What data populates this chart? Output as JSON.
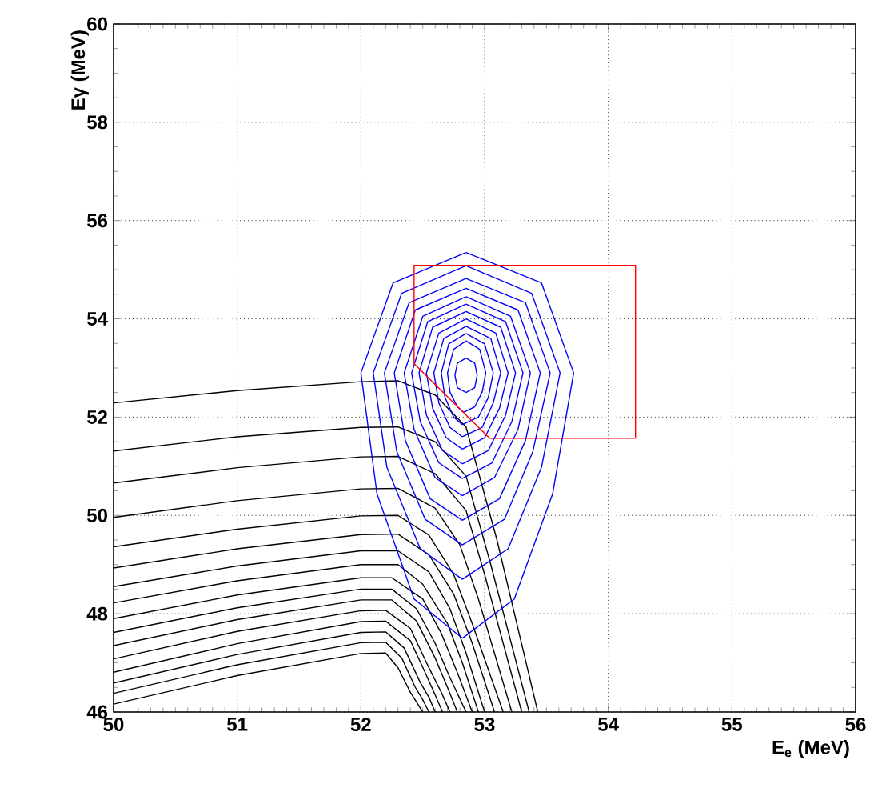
{
  "chart_data": {
    "type": "line",
    "xlabel": "E$_{e}$ (MeV)",
    "ylabel": "Eγ (MeV)",
    "xlim": [
      50,
      56
    ],
    "ylim": [
      46,
      60
    ],
    "xticks": [
      50,
      51,
      52,
      53,
      54,
      55,
      56
    ],
    "yticks": [
      46,
      48,
      50,
      52,
      54,
      56,
      58,
      60
    ],
    "grid": true,
    "series": [
      {
        "color": "#000000",
        "x": [
          50,
          51,
          52,
          52.3,
          52.6,
          52.85,
          53.1,
          53.43
        ],
        "values": [
          52.29,
          52.54,
          52.72,
          52.74,
          52.45,
          51.8,
          49.5,
          46
        ]
      },
      {
        "color": "#000000",
        "x": [
          50,
          51,
          52,
          52.3,
          52.6,
          52.85,
          53.05,
          53.36
        ],
        "values": [
          51.31,
          51.6,
          51.79,
          51.8,
          51.5,
          50.8,
          49,
          46
        ]
      },
      {
        "color": "#000000",
        "x": [
          50,
          51,
          52,
          52.3,
          52.6,
          52.85,
          53.0,
          53.3
        ],
        "values": [
          50.66,
          50.97,
          51.19,
          51.2,
          50.85,
          50.1,
          48.8,
          46
        ]
      },
      {
        "color": "#000000",
        "x": [
          50,
          51,
          52,
          52.3,
          52.6,
          52.8,
          52.95,
          53.22
        ],
        "values": [
          49.96,
          50.3,
          50.54,
          50.55,
          50.15,
          49.4,
          48.3,
          46
        ]
      },
      {
        "color": "#000000",
        "x": [
          50,
          51,
          52,
          52.3,
          52.55,
          52.75,
          52.9,
          53.15
        ],
        "values": [
          49.36,
          49.72,
          49.99,
          50.0,
          49.6,
          48.8,
          47.8,
          46
        ]
      },
      {
        "color": "#000000",
        "x": [
          50,
          51,
          52,
          52.3,
          52.55,
          52.75,
          52.9,
          53.08
        ],
        "values": [
          48.93,
          49.32,
          49.61,
          49.62,
          49.2,
          48.4,
          47.4,
          46
        ]
      },
      {
        "color": "#000000",
        "x": [
          50,
          51,
          52,
          52.3,
          52.55,
          52.72,
          52.85,
          53.0
        ],
        "values": [
          48.55,
          48.97,
          49.28,
          49.28,
          48.85,
          48.1,
          47.2,
          46
        ]
      },
      {
        "color": "#000000",
        "x": [
          50,
          51,
          52,
          52.3,
          52.5,
          52.7,
          52.82,
          52.95
        ],
        "values": [
          48.22,
          48.67,
          49.0,
          49.0,
          48.6,
          47.8,
          47.0,
          46
        ]
      },
      {
        "color": "#000000",
        "x": [
          50,
          51,
          52,
          52.25,
          52.5,
          52.65,
          52.78,
          52.9
        ],
        "values": [
          47.9,
          48.38,
          48.73,
          48.73,
          48.3,
          47.6,
          46.8,
          46
        ]
      },
      {
        "color": "#000000",
        "x": [
          50,
          51,
          52,
          52.25,
          52.45,
          52.6,
          52.72,
          52.85
        ],
        "values": [
          47.62,
          48.12,
          48.5,
          48.5,
          48.1,
          47.4,
          46.7,
          46
        ]
      },
      {
        "color": "#000000",
        "x": [
          50,
          51,
          52,
          52.25,
          52.45,
          52.6,
          52.7,
          52.78
        ],
        "values": [
          47.35,
          47.88,
          48.28,
          48.28,
          47.85,
          47.1,
          46.5,
          46
        ]
      },
      {
        "color": "#000000",
        "x": [
          50,
          51,
          52,
          52.2,
          52.4,
          52.55,
          52.65,
          52.72
        ],
        "values": [
          47.08,
          47.64,
          48.06,
          48.07,
          47.7,
          46.9,
          46.4,
          46
        ]
      },
      {
        "color": "#000000",
        "x": [
          50,
          51,
          52,
          52.2,
          52.4,
          52.52,
          52.6,
          52.66
        ],
        "values": [
          46.81,
          47.39,
          47.84,
          47.85,
          47.45,
          46.8,
          46.35,
          46
        ]
      },
      {
        "color": "#000000",
        "x": [
          50,
          51,
          52,
          52.2,
          52.35,
          52.48,
          52.55,
          52.6
        ],
        "values": [
          46.59,
          47.17,
          47.62,
          47.63,
          47.3,
          46.6,
          46.3,
          46
        ]
      },
      {
        "color": "#000000",
        "x": [
          50,
          51,
          52,
          52.2,
          52.33,
          52.44,
          52.5,
          52.55
        ],
        "values": [
          46.38,
          46.96,
          47.41,
          47.42,
          47.1,
          46.5,
          46.25,
          46
        ]
      },
      {
        "color": "#000000",
        "x": [
          50,
          51,
          52,
          52.2,
          52.3,
          52.4,
          52.45,
          52.5
        ],
        "values": [
          46.16,
          46.74,
          47.19,
          47.2,
          46.9,
          46.4,
          46.2,
          46
        ]
      },
      {
        "color": "#0000ff",
        "x": [
          52.85,
          53.46,
          53.72,
          53.55,
          53.24,
          52.82
        ],
        "values": [
          55.35,
          54.73,
          52.9,
          50.44,
          48.3,
          47.5
        ]
      },
      {
        "color": "#0000ff",
        "x": [
          52.82,
          52.43,
          52.13,
          52.0,
          52.26,
          52.85
        ],
        "values": [
          47.5,
          48.3,
          50.44,
          52.9,
          54.73,
          55.35
        ]
      },
      {
        "color": "#0000ff",
        "x": [
          52.85,
          53.38,
          53.61,
          53.46,
          53.19,
          52.82
        ],
        "values": [
          55.08,
          54.52,
          52.9,
          50.98,
          49.32,
          48.7
        ]
      },
      {
        "color": "#0000ff",
        "x": [
          52.82,
          52.48,
          52.21,
          52.1,
          52.33,
          52.85
        ],
        "values": [
          48.7,
          49.32,
          50.98,
          52.9,
          54.52,
          55.08
        ]
      },
      {
        "color": "#0000ff",
        "x": [
          52.85,
          53.33,
          53.53,
          53.39,
          53.16,
          52.82
        ],
        "values": [
          54.82,
          54.33,
          52.9,
          51.3,
          49.92,
          49.4
        ]
      },
      {
        "color": "#0000ff",
        "x": [
          52.82,
          52.52,
          52.29,
          52.19,
          52.39,
          52.85
        ],
        "values": [
          49.4,
          49.92,
          51.3,
          52.9,
          54.33,
          54.82
        ]
      },
      {
        "color": "#0000ff",
        "x": [
          52.85,
          53.27,
          53.45,
          53.33,
          53.12,
          52.82
        ],
        "values": [
          54.62,
          54.18,
          52.9,
          51.52,
          50.34,
          49.9
        ]
      },
      {
        "color": "#0000ff",
        "x": [
          52.82,
          52.56,
          52.36,
          52.27,
          52.44,
          52.85
        ],
        "values": [
          49.9,
          50.34,
          51.52,
          52.9,
          54.18,
          54.62
        ]
      },
      {
        "color": "#0000ff",
        "x": [
          52.85,
          53.21,
          53.37,
          53.27,
          53.08,
          52.82
        ],
        "values": [
          54.45,
          54.05,
          52.9,
          51.75,
          50.77,
          50.4
        ]
      },
      {
        "color": "#0000ff",
        "x": [
          52.82,
          52.6,
          52.43,
          52.35,
          52.5,
          52.85
        ],
        "values": [
          50.4,
          50.77,
          51.75,
          52.9,
          54.05,
          54.45
        ]
      },
      {
        "color": "#0000ff",
        "x": [
          52.85,
          53.17,
          53.31,
          53.22,
          53.06,
          52.82
        ],
        "values": [
          54.3,
          53.94,
          52.9,
          51.91,
          51.07,
          50.75
        ]
      },
      {
        "color": "#0000ff",
        "x": [
          52.82,
          52.63,
          52.48,
          52.41,
          52.54,
          52.85
        ],
        "values": [
          50.75,
          51.07,
          51.91,
          52.9,
          53.94,
          54.3
        ]
      },
      {
        "color": "#0000ff",
        "x": [
          52.85,
          53.13,
          53.25,
          53.17,
          53.03,
          52.82
        ],
        "values": [
          54.15,
          53.83,
          52.9,
          52.04,
          51.32,
          51.05
        ]
      },
      {
        "color": "#0000ff",
        "x": [
          52.82,
          52.66,
          52.53,
          52.47,
          52.58,
          52.85
        ],
        "values": [
          51.05,
          51.32,
          52.04,
          52.9,
          53.83,
          54.15
        ]
      },
      {
        "color": "#0000ff",
        "x": [
          52.85,
          53.09,
          53.19,
          53.12,
          53.0,
          52.82
        ],
        "values": [
          54.0,
          53.71,
          52.9,
          52.18,
          51.58,
          51.35
        ]
      },
      {
        "color": "#0000ff",
        "x": [
          52.82,
          52.69,
          52.58,
          52.53,
          52.63,
          52.85
        ],
        "values": [
          51.35,
          51.58,
          52.18,
          52.9,
          53.71,
          54.0
        ]
      },
      {
        "color": "#0000ff",
        "x": [
          52.85,
          53.05,
          53.13,
          53.07,
          52.98,
          52.82
        ],
        "values": [
          53.85,
          53.6,
          52.9,
          52.29,
          51.79,
          51.6
        ]
      },
      {
        "color": "#0000ff",
        "x": [
          52.82,
          52.72,
          52.63,
          52.59,
          52.67,
          52.85
        ],
        "values": [
          51.6,
          51.79,
          52.29,
          52.9,
          53.6,
          53.85
        ]
      },
      {
        "color": "#0000ff",
        "x": [
          52.85,
          53.0,
          53.07,
          53.03,
          52.95,
          52.82
        ],
        "values": [
          53.7,
          53.49,
          52.9,
          52.4,
          52.0,
          51.85
        ]
      },
      {
        "color": "#0000ff",
        "x": [
          52.82,
          52.75,
          52.68,
          52.65,
          52.71,
          52.85
        ],
        "values": [
          51.85,
          52.0,
          52.4,
          52.9,
          53.49,
          53.7
        ]
      },
      {
        "color": "#0000ff",
        "x": [
          52.85,
          52.96,
          53.01,
          52.98,
          52.92,
          52.83
        ],
        "values": [
          53.55,
          53.38,
          52.9,
          52.51,
          52.21,
          52.1
        ]
      },
      {
        "color": "#0000ff",
        "x": [
          52.83,
          52.78,
          52.72,
          52.7,
          52.75,
          52.85
        ],
        "values": [
          52.1,
          52.21,
          52.51,
          52.9,
          53.38,
          53.55
        ]
      },
      {
        "color": "#0000ff",
        "x": [
          52.85,
          52.92,
          52.94,
          52.92,
          52.85
        ],
        "values": [
          53.2,
          53.1,
          52.85,
          52.6,
          52.5
        ]
      },
      {
        "color": "#0000ff",
        "x": [
          52.85,
          52.78,
          52.76,
          52.78,
          52.85
        ],
        "values": [
          52.5,
          52.6,
          52.85,
          53.1,
          53.2
        ]
      },
      {
        "color": "#ff0000",
        "x": [
          52.43,
          52.43,
          54.22,
          54.22
        ],
        "values": [
          53.09,
          55.09,
          55.09,
          51.57
        ]
      },
      {
        "color": "#ff0000",
        "x": [
          54.22,
          53.04,
          52.43
        ],
        "values": [
          51.57,
          51.57,
          53.09
        ]
      }
    ]
  }
}
